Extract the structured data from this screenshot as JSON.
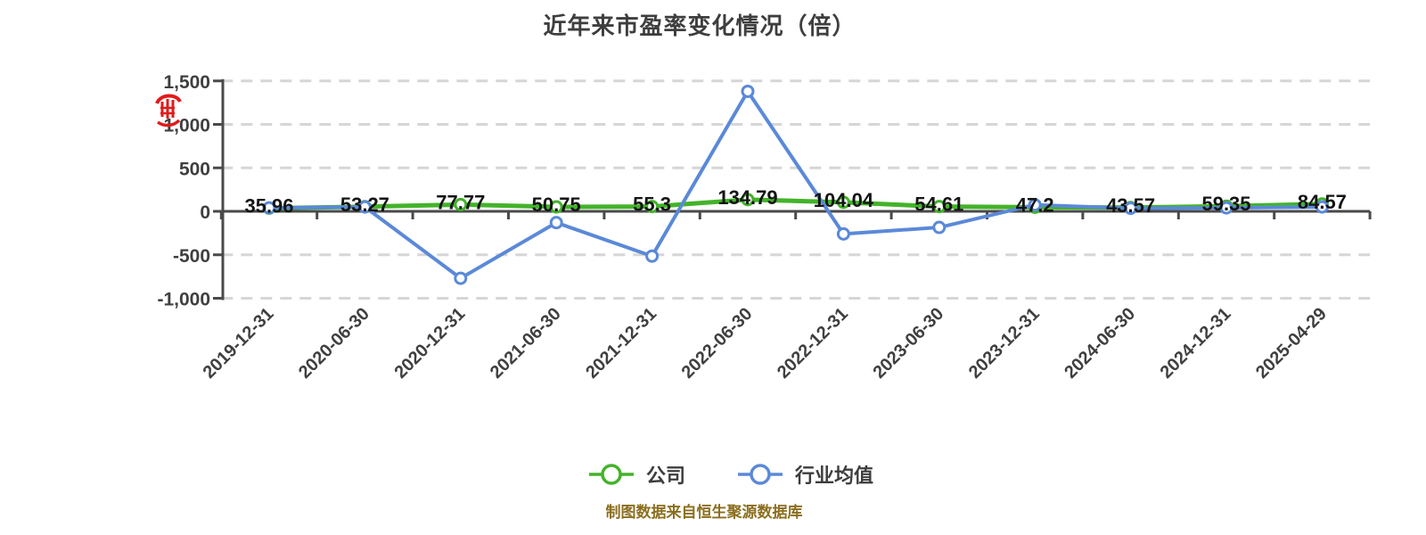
{
  "title": "近年来市盈率变化情况（倍）",
  "source_note": "制图数据来自恒生聚源数据库",
  "legend": {
    "items": [
      {
        "label": "公司"
      },
      {
        "label": "行业均值"
      }
    ]
  },
  "colors": {
    "company": "#43b32a",
    "industry": "#5b89d8",
    "grid": "#d6d6d6",
    "axis": "#4a4a4a",
    "title_text": "#3e3e3e",
    "tick_text": "#3f3f3f",
    "value_label_text": "#141414",
    "source_text": "#8b6e1e",
    "red_icon": "#e21b1b",
    "marker_fill": "#ffffff"
  },
  "chart_data": {
    "type": "line",
    "title": "近年来市盈率变化情况（倍）",
    "categories": [
      "2019-12-31",
      "2020-06-30",
      "2020-12-31",
      "2021-06-30",
      "2021-12-31",
      "2022-06-30",
      "2022-12-31",
      "2023-06-30",
      "2023-12-31",
      "2024-06-30",
      "2024-12-31",
      "2025-04-29"
    ],
    "series": [
      {
        "name": "公司",
        "color_key": "company",
        "values": [
          35.96,
          53.27,
          77.77,
          50.75,
          55.3,
          134.79,
          104.04,
          54.61,
          47.2,
          43.57,
          59.35,
          84.57
        ],
        "data_labels": [
          "35.96",
          "53.27",
          "77.77",
          "50.75",
          "55.3",
          "134.79",
          "104.04",
          "54.61",
          "47.2",
          "43.57",
          "59.35",
          "84.57"
        ]
      },
      {
        "name": "行业均值",
        "color_key": "industry",
        "values": [
          40,
          50,
          -770,
          -130,
          -515,
          1380,
          -260,
          -185,
          75,
          35,
          40,
          50
        ],
        "data_labels": null
      }
    ],
    "ylim": [
      -1000,
      1500
    ],
    "yticks": [
      {
        "value": 1500,
        "label": "1,500"
      },
      {
        "value": 1000,
        "label": "1,000"
      },
      {
        "value": 500,
        "label": "500"
      },
      {
        "value": 0,
        "label": "0"
      },
      {
        "value": -500,
        "label": "-500"
      },
      {
        "value": -1000,
        "label": "-1,000"
      }
    ],
    "grid": "horizontal-dashed",
    "legend_position": "bottom"
  }
}
